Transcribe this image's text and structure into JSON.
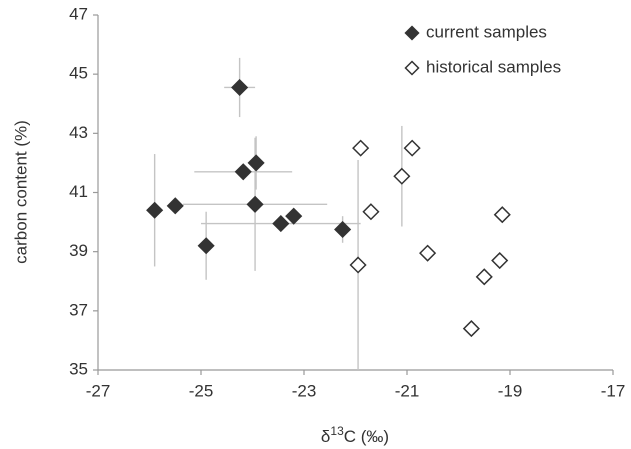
{
  "chart_data": {
    "type": "scatter",
    "x_label": {
      "prefix": "δ",
      "sup": "13",
      "suffix": "C (‰)"
    },
    "y_label": "carbon content (%)",
    "xlim": [
      -27,
      -17
    ],
    "xticks": [
      -27,
      -25,
      -23,
      -21,
      -19,
      -17
    ],
    "ylim": [
      35,
      47
    ],
    "yticks": [
      35,
      37,
      39,
      41,
      43,
      45,
      47
    ],
    "grid": false,
    "legend": "upper right",
    "series": [
      {
        "name": "current samples",
        "color": "#333333",
        "filled": true,
        "x": [
          -24.25,
          -23.93,
          -24.18,
          -25.9,
          -25.5,
          -23.95,
          -24.9,
          -23.45,
          -23.2,
          -22.25
        ],
        "values": [
          44.55,
          42.0,
          41.7,
          40.4,
          40.55,
          40.6,
          39.2,
          39.95,
          40.2,
          39.75
        ],
        "xerr": [
          0.3,
          null,
          0.95,
          null,
          null,
          1.4,
          null,
          1.55,
          null,
          null
        ],
        "yerr": [
          1.0,
          0.9,
          null,
          1.9,
          null,
          2.25,
          1.15,
          null,
          null,
          0.45
        ]
      },
      {
        "name": "historical samples",
        "color": "#333333",
        "filled": false,
        "x": [
          -21.9,
          -21.95,
          -21.7,
          -21.1,
          -20.9,
          -20.6,
          -19.15,
          -19.2,
          -19.5,
          -19.75
        ],
        "values": [
          42.5,
          38.55,
          40.35,
          41.55,
          42.5,
          38.95,
          40.25,
          38.7,
          38.15,
          36.4
        ],
        "xerr": [
          null,
          null,
          null,
          null,
          null,
          null,
          null,
          null,
          null,
          null
        ],
        "yerr": [
          null,
          3.55,
          null,
          1.7,
          null,
          null,
          null,
          null,
          null,
          null
        ]
      }
    ]
  }
}
